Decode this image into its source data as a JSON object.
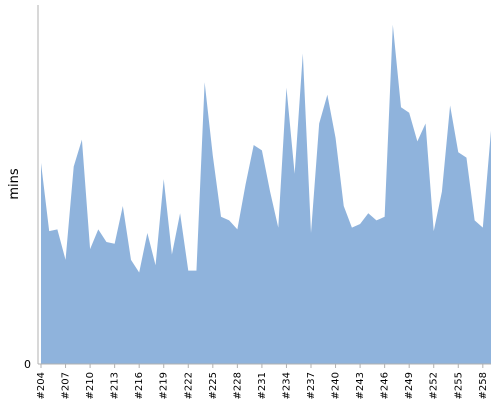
{
  "chart_data": {
    "type": "area",
    "ylabel": "mins",
    "xlabel": "",
    "title": "",
    "ylim": [
      0,
      100
    ],
    "grid": false,
    "legend": "none",
    "color": "#8fb3dc",
    "y_ticks": [
      {
        "value": 0,
        "label": "0"
      }
    ],
    "categories": [
      "#204",
      "#205",
      "#206",
      "#207",
      "#208",
      "#209",
      "#210",
      "#211",
      "#212",
      "#213",
      "#214",
      "#215",
      "#216",
      "#217",
      "#218",
      "#219",
      "#220",
      "#221",
      "#222",
      "#223",
      "#224",
      "#225",
      "#226",
      "#227",
      "#228",
      "#229",
      "#230",
      "#231",
      "#232",
      "#233",
      "#234",
      "#235",
      "#236",
      "#237",
      "#238",
      "#239",
      "#240",
      "#241",
      "#242",
      "#243",
      "#244",
      "#245",
      "#246",
      "#247",
      "#248",
      "#249",
      "#250",
      "#251",
      "#252",
      "#253",
      "#254",
      "#255",
      "#256",
      "#257",
      "#258",
      "#259"
    ],
    "tick_labels": [
      "#204",
      "#207",
      "#210",
      "#213",
      "#216",
      "#219",
      "#222",
      "#225",
      "#228",
      "#231",
      "#234",
      "#237",
      "#240",
      "#243",
      "#246",
      "#249",
      "#252",
      "#255",
      "#258"
    ],
    "series": [
      {
        "values": [
          56,
          37,
          37.5,
          29,
          55,
          62.5,
          32,
          37.5,
          34,
          33.5,
          44,
          29,
          25.5,
          36.5,
          27.5,
          51.5,
          30.5,
          42,
          26,
          26,
          78.5,
          58,
          41,
          40,
          37.5,
          50,
          61,
          59.5,
          48,
          38,
          77,
          53,
          86.5,
          36.5,
          67,
          75,
          63,
          44,
          38,
          39,
          42,
          40,
          41,
          94.5,
          71.5,
          70,
          62,
          67,
          37,
          48,
          72,
          59,
          57.5,
          40,
          38,
          65
        ]
      }
    ]
  }
}
